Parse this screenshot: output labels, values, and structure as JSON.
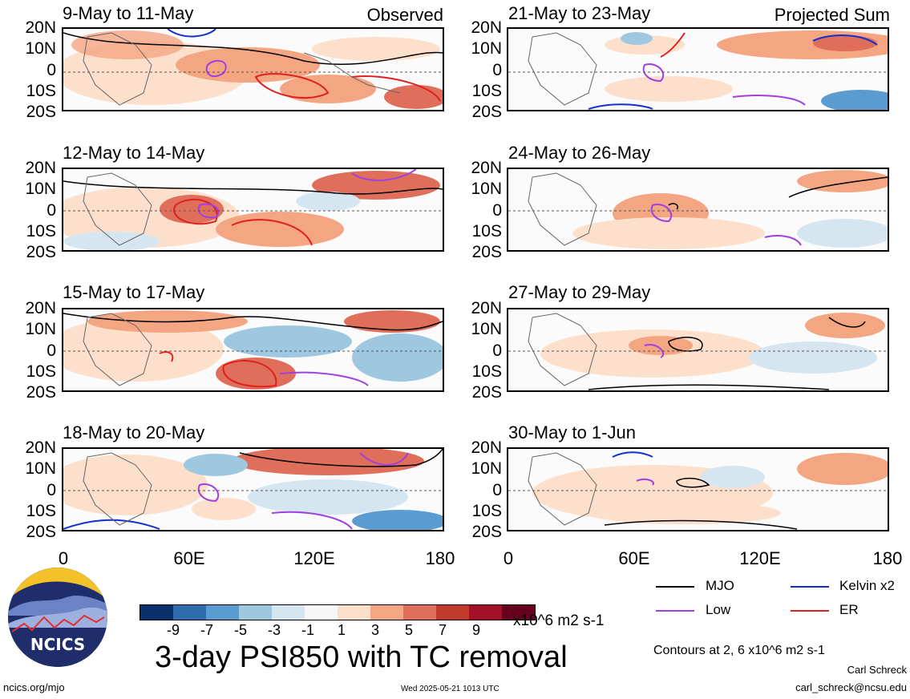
{
  "panels": {
    "left": [
      {
        "title": "9-May to 11-May",
        "tag": "Observed"
      },
      {
        "title": "12-May to 14-May",
        "tag": ""
      },
      {
        "title": "15-May to 17-May",
        "tag": ""
      },
      {
        "title": "18-May to 20-May",
        "tag": ""
      }
    ],
    "right": [
      {
        "title": "21-May to 23-May",
        "tag": "Projected Sum"
      },
      {
        "title": "24-May to 26-May",
        "tag": ""
      },
      {
        "title": "27-May to 29-May",
        "tag": ""
      },
      {
        "title": "30-May to 1-Jun",
        "tag": ""
      }
    ]
  },
  "lat_labels": [
    "20N",
    "10N",
    "0",
    "10S",
    "20S"
  ],
  "lon_labels": [
    "0",
    "60E",
    "120E",
    "180"
  ],
  "colorbar": {
    "colors": [
      "#08306b",
      "#2f6cae",
      "#5a9bd0",
      "#9ec8e0",
      "#d6e6f1",
      "#f7f7f7",
      "#fde0cc",
      "#f4a582",
      "#df6f5a",
      "#c0392b",
      "#a50f27",
      "#67001f"
    ],
    "ticks": [
      "-9",
      "-7",
      "-5",
      "-3",
      "-1",
      "1",
      "3",
      "5",
      "7",
      "9"
    ],
    "units": "x10^6 m2 s-1"
  },
  "legend": [
    {
      "label": "MJO",
      "color": "#000000"
    },
    {
      "label": "Kelvin x2",
      "color": "#1030d0"
    },
    {
      "label": "Low",
      "color": "#a040e0"
    },
    {
      "label": "ER",
      "color": "#e02020"
    }
  ],
  "main_title": "3-day PSI850 with TC removal",
  "contours_note": "Contours at 2, 6 x10^6 m2 s-1",
  "author": "Carl Schreck",
  "email": "carl_schreck@ncsu.edu",
  "site": "ncics.org/mjo",
  "timestamp": "Wed 2025-05-21 1013 UTC",
  "logo_text": "NCICS"
}
